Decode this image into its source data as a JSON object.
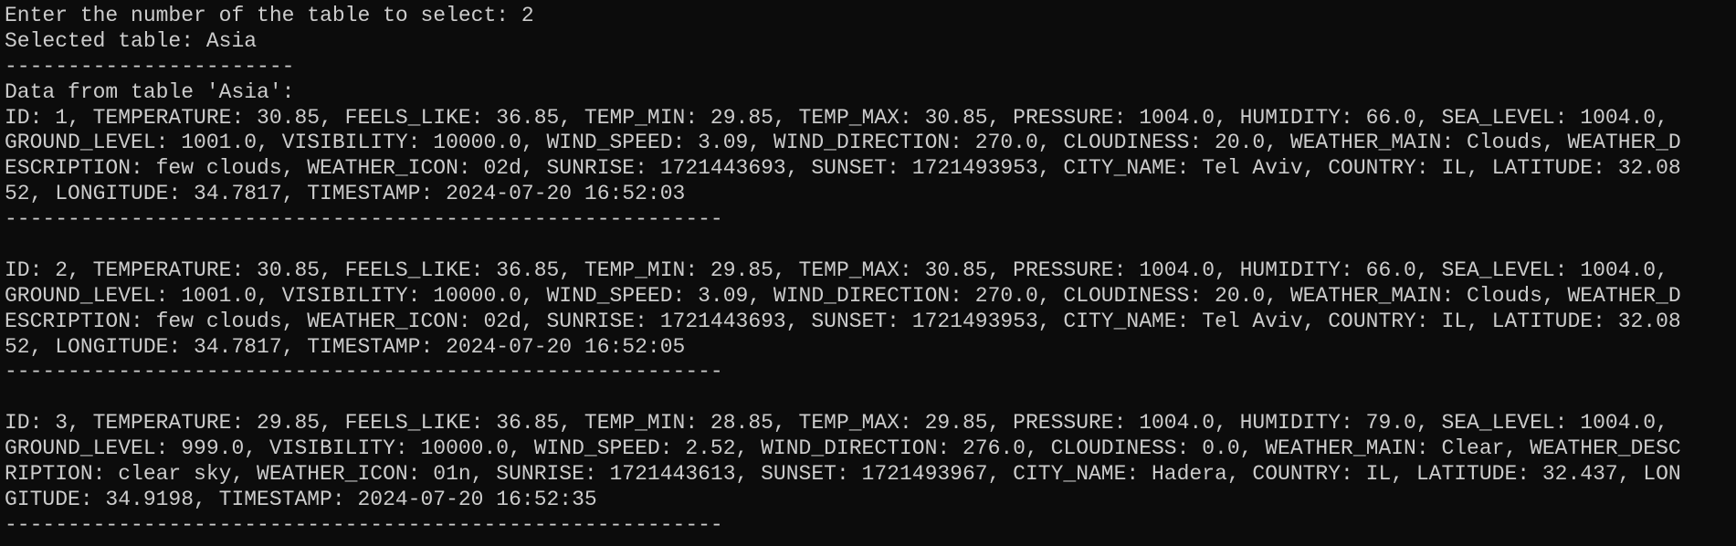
{
  "prompt": "Enter the number of the table to select: 2",
  "selected": "Selected table: Asia",
  "separator": "-----------------------",
  "header": "Data from table 'Asia':",
  "records": [
    {
      "lines": [
        "ID: 1, TEMPERATURE: 30.85, FEELS_LIKE: 36.85, TEMP_MIN: 29.85, TEMP_MAX: 30.85, PRESSURE: 1004.0, HUMIDITY: 66.0, SEA_LEVEL: 1004.0,",
        "GROUND_LEVEL: 1001.0, VISIBILITY: 10000.0, WIND_SPEED: 3.09, WIND_DIRECTION: 270.0, CLOUDINESS: 20.0, WEATHER_MAIN: Clouds, WEATHER_D",
        "ESCRIPTION: few clouds, WEATHER_ICON: 02d, SUNRISE: 1721443693, SUNSET: 1721493953, CITY_NAME: Tel Aviv, COUNTRY: IL, LATITUDE: 32.08",
        "52, LONGITUDE: 34.7817, TIMESTAMP: 2024-07-20 16:52:03"
      ],
      "separator": "---------------------------------------------------------"
    },
    {
      "lines": [
        "ID: 2, TEMPERATURE: 30.85, FEELS_LIKE: 36.85, TEMP_MIN: 29.85, TEMP_MAX: 30.85, PRESSURE: 1004.0, HUMIDITY: 66.0, SEA_LEVEL: 1004.0,",
        "GROUND_LEVEL: 1001.0, VISIBILITY: 10000.0, WIND_SPEED: 3.09, WIND_DIRECTION: 270.0, CLOUDINESS: 20.0, WEATHER_MAIN: Clouds, WEATHER_D",
        "ESCRIPTION: few clouds, WEATHER_ICON: 02d, SUNRISE: 1721443693, SUNSET: 1721493953, CITY_NAME: Tel Aviv, COUNTRY: IL, LATITUDE: 32.08",
        "52, LONGITUDE: 34.7817, TIMESTAMP: 2024-07-20 16:52:05"
      ],
      "separator": "---------------------------------------------------------"
    },
    {
      "lines": [
        "ID: 3, TEMPERATURE: 29.85, FEELS_LIKE: 36.85, TEMP_MIN: 28.85, TEMP_MAX: 29.85, PRESSURE: 1004.0, HUMIDITY: 79.0, SEA_LEVEL: 1004.0,",
        "GROUND_LEVEL: 999.0, VISIBILITY: 10000.0, WIND_SPEED: 2.52, WIND_DIRECTION: 276.0, CLOUDINESS: 0.0, WEATHER_MAIN: Clear, WEATHER_DESC",
        "RIPTION: clear sky, WEATHER_ICON: 01n, SUNRISE: 1721443613, SUNSET: 1721493967, CITY_NAME: Hadera, COUNTRY: IL, LATITUDE: 32.437, LON",
        "GITUDE: 34.9198, TIMESTAMP: 2024-07-20 16:52:35"
      ],
      "separator": "---------------------------------------------------------"
    }
  ]
}
